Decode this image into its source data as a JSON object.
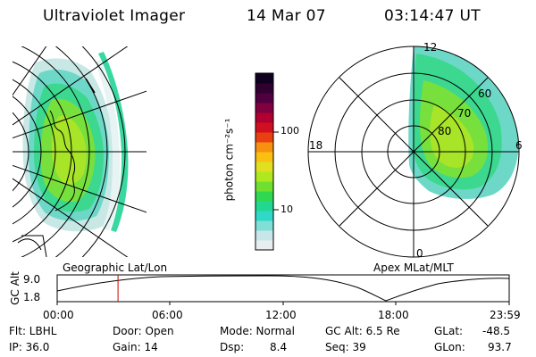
{
  "header": {
    "instrument": "Ultraviolet Imager",
    "date": "14 Mar 07",
    "time": "03:14:47 UT"
  },
  "colorbar": {
    "unit_label": "photon cm⁻²s⁻¹",
    "tick_100": "100",
    "tick_10": "10",
    "colors": [
      "#e8eef0",
      "#c8e6e8",
      "#80e0d8",
      "#30d8c8",
      "#20d890",
      "#30d850",
      "#70e030",
      "#b0e820",
      "#e0e020",
      "#f8c010",
      "#f89010",
      "#e84010",
      "#d01020",
      "#b00030",
      "#800040",
      "#500040",
      "#300030",
      "#100020"
    ]
  },
  "polar_plot": {
    "label_12": "12",
    "label_18": "18",
    "label_6": "6",
    "label_0": "0",
    "label_60": "60",
    "label_70": "70",
    "label_80": "80"
  },
  "projection_labels": {
    "left": "Geographic Lat/Lon",
    "right": "Apex MLat/MLT"
  },
  "altitude_plot": {
    "axis_label": "GC Alt",
    "y_max": "9.0",
    "y_min": "1.8",
    "x_ticks": [
      "00:00",
      "06:00",
      "12:00",
      "18:00",
      "23:59"
    ],
    "current_time_fraction": 0.1345
  },
  "status": {
    "filter": "Flt: LBHL",
    "ip": "IP: 36.0",
    "door": "Door: Open",
    "gain": "Gain: 14",
    "mode": "Mode: Normal",
    "dsp_label": "Dsp:",
    "dsp_value": "8.4",
    "gc_alt": "GC Alt: 6.5 Re",
    "seq": "Seq: 39",
    "glat_label": "GLat:",
    "glat_value": "-48.5",
    "glon_label": "GLon:",
    "glon_value": "93.7"
  }
}
